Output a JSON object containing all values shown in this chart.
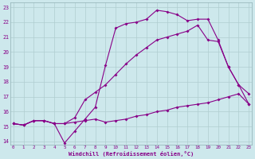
{
  "xlabel": "Windchill (Refroidissement éolien,°C)",
  "bg_color": "#cde8ec",
  "grid_color": "#b0cdd0",
  "line_color": "#880088",
  "xlim": [
    -0.3,
    23.3
  ],
  "ylim": [
    13.8,
    23.3
  ],
  "xticks": [
    0,
    1,
    2,
    3,
    4,
    5,
    6,
    7,
    8,
    9,
    10,
    11,
    12,
    13,
    14,
    15,
    16,
    17,
    18,
    19,
    20,
    21,
    22,
    23
  ],
  "yticks": [
    14,
    15,
    16,
    17,
    18,
    19,
    20,
    21,
    22,
    23
  ],
  "line1_x": [
    0,
    1,
    2,
    3,
    4,
    5,
    6,
    7,
    8,
    9,
    10,
    11,
    12,
    13,
    14,
    15,
    16,
    17,
    18,
    19,
    20,
    21,
    22,
    23
  ],
  "line1_y": [
    15.2,
    15.1,
    15.4,
    15.4,
    15.2,
    15.2,
    15.3,
    15.4,
    15.5,
    15.3,
    15.4,
    15.5,
    15.7,
    15.8,
    16.0,
    16.1,
    16.3,
    16.4,
    16.5,
    16.6,
    16.8,
    17.0,
    17.2,
    16.5
  ],
  "line2_x": [
    0,
    1,
    2,
    3,
    4,
    5,
    6,
    7,
    8,
    9,
    10,
    11,
    12,
    13,
    14,
    15,
    16,
    17,
    18,
    19,
    20,
    21,
    22,
    23
  ],
  "line2_y": [
    15.2,
    15.1,
    15.4,
    15.4,
    15.2,
    13.9,
    14.7,
    15.5,
    16.3,
    19.1,
    21.6,
    21.9,
    22.0,
    22.2,
    22.8,
    22.7,
    22.5,
    22.1,
    22.2,
    22.2,
    20.8,
    19.0,
    17.8,
    17.2
  ],
  "line3_x": [
    0,
    1,
    2,
    3,
    4,
    5,
    6,
    7,
    8,
    9,
    10,
    11,
    12,
    13,
    14,
    15,
    16,
    17,
    18,
    19,
    20,
    21,
    22,
    23
  ],
  "line3_y": [
    15.2,
    15.1,
    15.4,
    15.4,
    15.2,
    15.2,
    15.6,
    16.8,
    17.3,
    17.8,
    18.5,
    19.2,
    19.8,
    20.3,
    20.8,
    21.0,
    21.2,
    21.4,
    21.8,
    20.8,
    20.7,
    19.0,
    17.8,
    16.5
  ]
}
